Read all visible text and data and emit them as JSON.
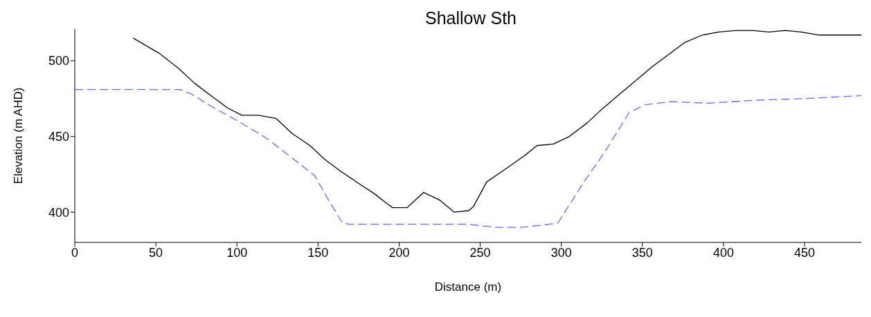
{
  "chart_data": {
    "type": "line",
    "title": "Shallow Sth",
    "xlabel": "Distance (m)",
    "ylabel": "Elevation (m AHD)",
    "xlim": [
      0,
      485
    ],
    "xticks": [
      0,
      50,
      100,
      150,
      200,
      250,
      300,
      350,
      400,
      450
    ],
    "ylim": [
      380,
      521
    ],
    "yticks": [
      400,
      450,
      500
    ],
    "marker": "none",
    "series": [
      {
        "color": "#000000",
        "line_style": "solid",
        "x": [
          36,
          52,
          64,
          74,
          84,
          94,
          103,
          113,
          124,
          134,
          145,
          154,
          164,
          175,
          185,
          192,
          196,
          205,
          215,
          225,
          234,
          243,
          246,
          254,
          265,
          277,
          285,
          295,
          305,
          316,
          325,
          336,
          346,
          356,
          366,
          376,
          387,
          397,
          408,
          418,
          428,
          438,
          448,
          459,
          485
        ],
        "values": [
          515,
          505,
          495,
          485,
          477,
          469,
          464,
          464,
          462,
          452,
          444,
          435,
          427,
          419,
          412,
          406,
          403,
          403,
          413,
          408,
          400,
          401,
          404,
          420,
          428,
          437,
          444,
          445,
          450,
          459,
          468,
          478,
          487,
          496,
          504,
          512,
          517,
          519,
          520,
          520,
          519,
          520,
          519,
          517,
          517
        ]
      },
      {
        "color": "#6666ff",
        "line_style": "dashed",
        "x": [
          0,
          37,
          65,
          72,
          84,
          101,
          118,
          135,
          148,
          157,
          165,
          169,
          208,
          242,
          259,
          276,
          293,
          298,
          314,
          327,
          342,
          352,
          367,
          391,
          420,
          450,
          485
        ],
        "values": [
          481,
          481,
          481,
          478,
          470,
          460,
          449,
          435,
          424,
          407,
          393,
          392,
          392,
          392,
          390,
          390,
          392,
          393,
          420,
          440,
          466,
          471,
          473,
          472,
          474,
          475,
          477
        ]
      }
    ]
  }
}
